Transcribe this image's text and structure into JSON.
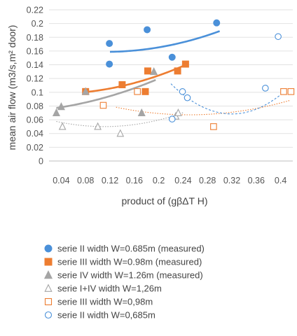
{
  "chart_data": {
    "type": "scatter",
    "xlabel": "product of (gβΔT H)",
    "ylabel": "mean air flow (m3/s,m² door)",
    "xlim": [
      0.02,
      0.42
    ],
    "ylim": [
      0,
      0.22
    ],
    "x_ticks": [
      0.04,
      0.08,
      0.12,
      0.16,
      0.2,
      0.24,
      0.28,
      0.32,
      0.36,
      0.4
    ],
    "x_tick_labels": [
      "0.04",
      "0.08",
      "0.12",
      "0.16",
      "0.2",
      "0.24",
      "0.28",
      "0.32",
      "0.36",
      "0.4"
    ],
    "y_ticks": [
      0,
      0.02,
      0.04,
      0.06,
      0.08,
      0.1,
      0.12,
      0.14,
      0.16,
      0.18,
      0.2,
      0.22
    ],
    "y_tick_labels": [
      "0",
      "0.02",
      "0.04",
      "0.06",
      "0.08",
      "0.1",
      "0.12",
      "0.14",
      "0.16",
      "0.18",
      "0.2",
      "0.22"
    ],
    "grid": "horizontal",
    "legend_position": "bottom",
    "series": [
      {
        "name": "serie II width W=0.685m (measured)",
        "marker": "circle",
        "filled": true,
        "color": "#4a90d9",
        "points": [
          [
            0.119,
            0.171
          ],
          [
            0.119,
            0.141
          ],
          [
            0.181,
            0.191
          ],
          [
            0.222,
            0.151
          ],
          [
            0.295,
            0.201
          ]
        ],
        "trend": {
          "style": "solid",
          "x_from": 0.12,
          "x_to": 0.3,
          "coef": [
            0.1698,
            -0.1944,
            0.8611
          ]
        }
      },
      {
        "name": "serie III width W=0.98m (measured)",
        "marker": "square",
        "filled": true,
        "color": "#ed7d31",
        "points": [
          [
            0.08,
            0.101
          ],
          [
            0.14,
            0.111
          ],
          [
            0.178,
            0.101
          ],
          [
            0.182,
            0.131
          ],
          [
            0.231,
            0.131
          ],
          [
            0.244,
            0.141
          ]
        ],
        "trend": {
          "style": "solid",
          "x_from": 0.08,
          "x_to": 0.245,
          "coef": [
            0.0986,
            -0.0507,
            0.9007
          ]
        }
      },
      {
        "name": "serie IV width W=1.26m (measured)",
        "marker": "triangle",
        "filled": true,
        "color": "#a5a5a5",
        "points": [
          [
            0.032,
            0.07
          ],
          [
            0.04,
            0.079
          ],
          [
            0.08,
            0.101
          ],
          [
            0.172,
            0.07
          ],
          [
            0.192,
            0.13
          ]
        ],
        "trend": {
          "style": "solid",
          "x_from": 0.032,
          "x_to": 0.195,
          "coef": [
            0.0737,
            0.0844,
            0.7317
          ]
        }
      },
      {
        "name": "serie I+IV width W=1,26m",
        "marker": "triangle",
        "filled": false,
        "color": "#a5a5a5",
        "points": [
          [
            0.042,
            0.05
          ],
          [
            0.1,
            0.05
          ],
          [
            0.137,
            0.04
          ],
          [
            0.228,
            0.065
          ],
          [
            0.232,
            0.07
          ]
        ],
        "trend": {
          "style": "dotted",
          "x_from": 0.032,
          "x_to": 0.24,
          "coef": [
            0.0649,
            -0.2681,
            1.2107
          ]
        }
      },
      {
        "name": "serie III width W=0,98m",
        "marker": "square",
        "filled": false,
        "color": "#ed7d31",
        "points": [
          [
            0.109,
            0.081
          ],
          [
            0.165,
            0.101
          ],
          [
            0.29,
            0.05
          ],
          [
            0.405,
            0.101
          ],
          [
            0.417,
            0.101
          ]
        ],
        "trend": {
          "style": "dotted",
          "x_from": 0.13,
          "x_to": 0.415,
          "coef": [
            0.1152,
            -0.3839,
            0.7677
          ]
        }
      },
      {
        "name": "serie II width W=0,685m",
        "marker": "circle",
        "filled": false,
        "color": "#4a90d9",
        "points": [
          [
            0.222,
            0.061
          ],
          [
            0.239,
            0.101
          ],
          [
            0.247,
            0.092
          ],
          [
            0.375,
            0.106
          ],
          [
            0.396,
            0.181
          ]
        ],
        "trend": {
          "style": "dashed",
          "x_from": 0.22,
          "x_to": 0.41,
          "coef": [
            0.5175,
            -2.8051,
            4.3808
          ]
        }
      }
    ]
  }
}
